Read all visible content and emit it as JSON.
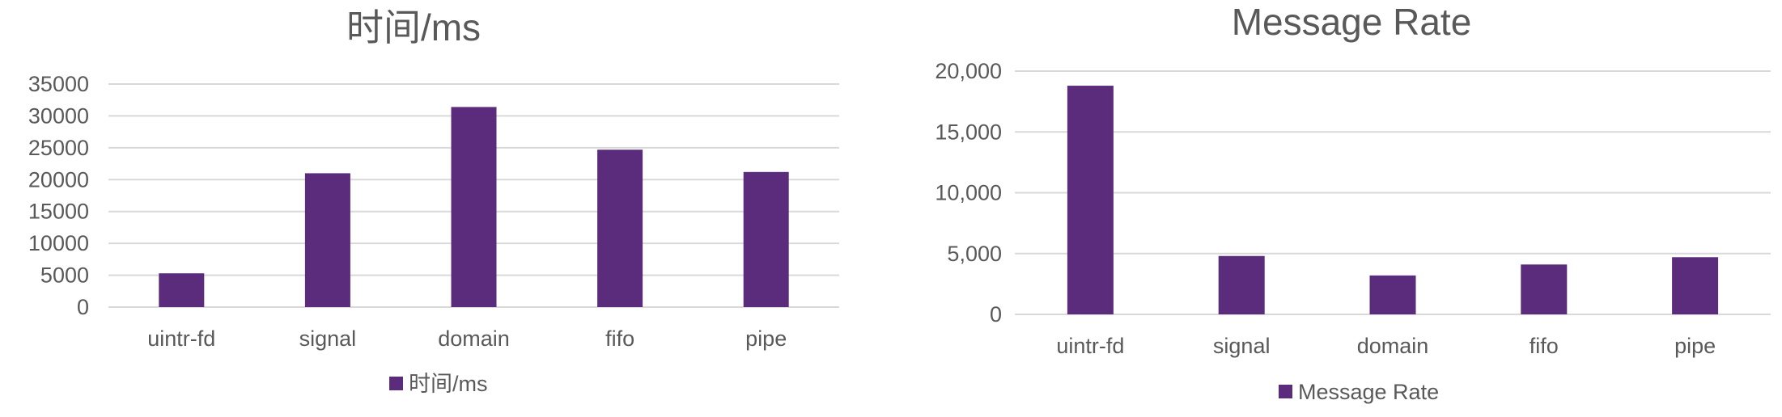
{
  "chart_data": [
    {
      "type": "bar",
      "title": "时间/ms",
      "categories": [
        "uintr-fd",
        "signal",
        "domain",
        "fifo",
        "pipe"
      ],
      "series": [
        {
          "name": "时间/ms",
          "values": [
            5300,
            21000,
            31400,
            24700,
            21200
          ]
        }
      ],
      "xlabel": "",
      "ylabel": "",
      "ylim": [
        0,
        35000
      ],
      "yticks": [
        "0",
        "5000",
        "10000",
        "15000",
        "20000",
        "25000",
        "30000",
        "35000"
      ],
      "grid": true,
      "legend": "bottom",
      "color": "#5b2c7b"
    },
    {
      "type": "bar",
      "title": "Message Rate",
      "categories": [
        "uintr-fd",
        "signal",
        "domain",
        "fifo",
        "pipe"
      ],
      "series": [
        {
          "name": "Message Rate",
          "values": [
            18800,
            4800,
            3200,
            4100,
            4700
          ]
        }
      ],
      "xlabel": "",
      "ylabel": "",
      "ylim": [
        0,
        20000
      ],
      "yticks": [
        "0",
        "5,000",
        "10,000",
        "15,000",
        "20,000"
      ],
      "grid": true,
      "legend": "bottom",
      "color": "#5b2c7b"
    }
  ]
}
